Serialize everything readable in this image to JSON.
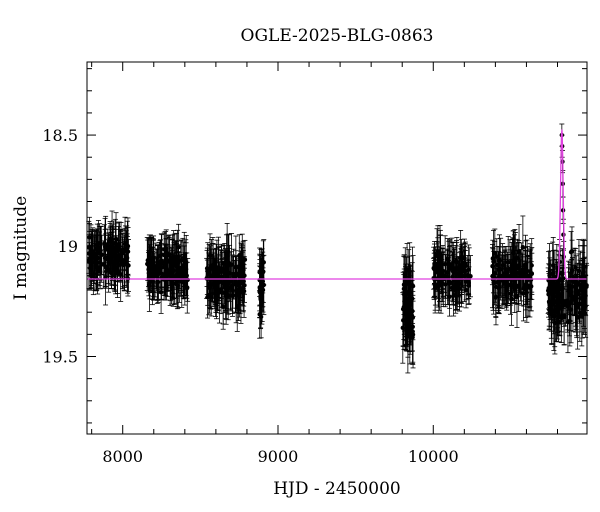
{
  "chart_data": {
    "type": "scatter",
    "title": "OGLE-2025-BLG-0863",
    "xlabel": "HJD - 2450000",
    "ylabel": "I magnitude",
    "xlim": [
      7770,
      10990
    ],
    "ylim": [
      19.85,
      18.17
    ],
    "y_inverted": true,
    "x_ticks": [
      8000,
      9000,
      10000
    ],
    "x_tick_labels": [
      "8000",
      "9000",
      "10000"
    ],
    "x_minor_step": 200,
    "y_ticks": [
      18.5,
      19,
      19.5
    ],
    "y_tick_labels": [
      "18.5",
      "19",
      "19.5"
    ],
    "y_minor_step": 0.1,
    "grid": false,
    "colors": {
      "data": "#000000",
      "model": "#e040e0"
    },
    "seasons": [
      {
        "start": 7780,
        "end": 8040,
        "mean": 19.05,
        "scatter": 0.09,
        "error": 0.1,
        "n": 130
      },
      {
        "start": 8150,
        "end": 8420,
        "mean": 19.11,
        "scatter": 0.09,
        "error": 0.1,
        "n": 130
      },
      {
        "start": 8540,
        "end": 8790,
        "mean": 19.14,
        "scatter": 0.1,
        "error": 0.11,
        "n": 130
      },
      {
        "start": 8880,
        "end": 8910,
        "mean": 19.18,
        "scatter": 0.12,
        "error": 0.11,
        "n": 25
      },
      {
        "start": 9800,
        "end": 9870,
        "mean": 19.28,
        "scatter": 0.16,
        "error": 0.14,
        "n": 60
      },
      {
        "start": 10000,
        "end": 10240,
        "mean": 19.13,
        "scatter": 0.09,
        "error": 0.1,
        "n": 120
      },
      {
        "start": 10380,
        "end": 10640,
        "mean": 19.14,
        "scatter": 0.1,
        "error": 0.11,
        "n": 120
      },
      {
        "start": 10740,
        "end": 10990,
        "mean": 19.22,
        "scatter": 0.13,
        "error": 0.12,
        "n": 140
      }
    ],
    "event_points": [
      {
        "x": 10828,
        "y": 18.5,
        "err": 0.05
      },
      {
        "x": 10830,
        "y": 18.55,
        "err": 0.05
      },
      {
        "x": 10832,
        "y": 18.62,
        "err": 0.05
      },
      {
        "x": 10834,
        "y": 18.72,
        "err": 0.06
      },
      {
        "x": 10836,
        "y": 18.84,
        "err": 0.06
      },
      {
        "x": 10838,
        "y": 18.95,
        "err": 0.07
      },
      {
        "x": 10840,
        "y": 19.05,
        "err": 0.07
      }
    ],
    "model": {
      "baseline": 19.15,
      "peak_t": 10828,
      "peak_mag": 18.47,
      "width": 12
    }
  }
}
